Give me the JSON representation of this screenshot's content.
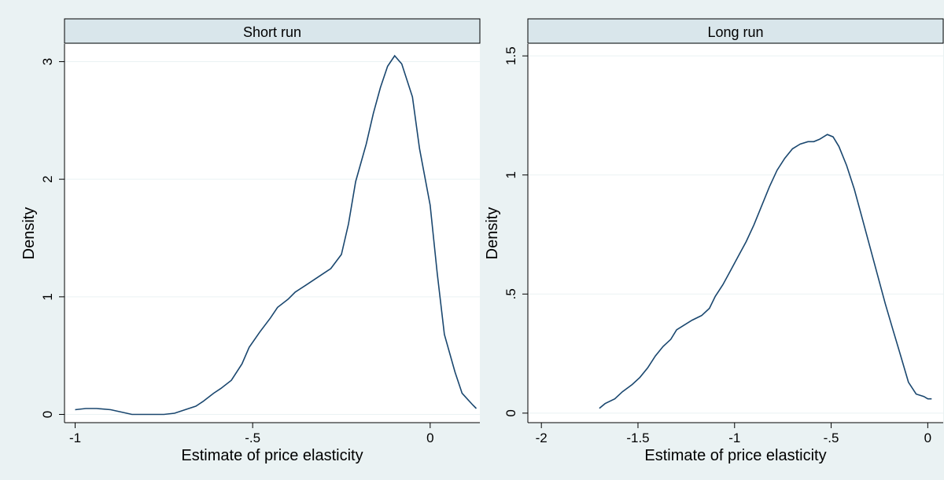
{
  "colors": {
    "background": "#eaf2f3",
    "plot_background": "#ffffff",
    "strip_fill": "#d9e6eb",
    "line": "#1a476f",
    "grid": "#eaf2f3",
    "axis": "#000000"
  },
  "chart_data": [
    {
      "type": "line",
      "title": "Short run",
      "xlabel": "Estimate of price elasticity",
      "ylabel": "Density",
      "xlim": [
        -1.03,
        0.14
      ],
      "ylim": [
        -0.07,
        3.15
      ],
      "xticks": [
        -1,
        -0.5,
        0
      ],
      "xtick_labels": [
        "-1",
        "-.5",
        "0"
      ],
      "yticks": [
        0,
        1,
        2,
        3
      ],
      "ytick_labels": [
        "0",
        "1",
        "2",
        "3"
      ],
      "grid": true,
      "series": [
        {
          "x": [
            -1.0,
            -0.97,
            -0.94,
            -0.9,
            -0.87,
            -0.84,
            -0.82,
            -0.78,
            -0.75,
            -0.72,
            -0.69,
            -0.66,
            -0.64,
            -0.61,
            -0.59,
            -0.56,
            -0.53,
            -0.51,
            -0.48,
            -0.45,
            -0.43,
            -0.4,
            -0.38,
            -0.35,
            -0.32,
            -0.3,
            -0.28,
            -0.25,
            -0.23,
            -0.21,
            -0.18,
            -0.16,
            -0.14,
            -0.12,
            -0.1,
            -0.08,
            -0.05,
            -0.03,
            0.0,
            0.02,
            0.04,
            0.07,
            0.09,
            0.12,
            0.13
          ],
          "y": [
            0.04,
            0.05,
            0.05,
            0.04,
            0.02,
            0.0,
            0.0,
            0.0,
            0.0,
            0.01,
            0.04,
            0.07,
            0.11,
            0.18,
            0.22,
            0.29,
            0.43,
            0.57,
            0.7,
            0.82,
            0.91,
            0.98,
            1.04,
            1.1,
            1.16,
            1.2,
            1.24,
            1.36,
            1.62,
            1.98,
            2.3,
            2.56,
            2.78,
            2.96,
            3.05,
            2.98,
            2.7,
            2.26,
            1.78,
            1.2,
            0.68,
            0.36,
            0.18,
            0.08,
            0.05
          ]
        }
      ]
    },
    {
      "type": "line",
      "title": "Long run",
      "xlabel": "Estimate of price elasticity",
      "ylabel": "Density",
      "xlim": [
        -2.07,
        0.08
      ],
      "ylim": [
        -0.04,
        1.55
      ],
      "xticks": [
        -2,
        -1.5,
        -1,
        -0.5,
        0
      ],
      "xtick_labels": [
        "-2",
        "-1.5",
        "-1",
        "-.5",
        "0"
      ],
      "yticks": [
        0,
        0.5,
        1,
        1.5
      ],
      "ytick_labels": [
        "0",
        ".5",
        "1",
        "1.5"
      ],
      "grid": true,
      "series": [
        {
          "x": [
            -1.7,
            -1.67,
            -1.62,
            -1.58,
            -1.53,
            -1.49,
            -1.45,
            -1.41,
            -1.37,
            -1.33,
            -1.3,
            -1.26,
            -1.22,
            -1.17,
            -1.13,
            -1.1,
            -1.06,
            -1.02,
            -0.98,
            -0.94,
            -0.9,
            -0.86,
            -0.82,
            -0.78,
            -0.74,
            -0.7,
            -0.66,
            -0.62,
            -0.59,
            -0.56,
            -0.52,
            -0.49,
            -0.46,
            -0.42,
            -0.38,
            -0.34,
            -0.3,
            -0.26,
            -0.22,
            -0.18,
            -0.14,
            -0.1,
            -0.06,
            -0.02,
            0.0,
            0.02
          ],
          "y": [
            0.02,
            0.04,
            0.06,
            0.09,
            0.12,
            0.15,
            0.19,
            0.24,
            0.28,
            0.31,
            0.35,
            0.37,
            0.39,
            0.41,
            0.44,
            0.49,
            0.54,
            0.6,
            0.66,
            0.72,
            0.79,
            0.87,
            0.95,
            1.02,
            1.07,
            1.11,
            1.13,
            1.14,
            1.14,
            1.15,
            1.17,
            1.16,
            1.12,
            1.04,
            0.94,
            0.82,
            0.7,
            0.58,
            0.46,
            0.35,
            0.24,
            0.13,
            0.08,
            0.07,
            0.06,
            0.06
          ]
        }
      ]
    }
  ]
}
